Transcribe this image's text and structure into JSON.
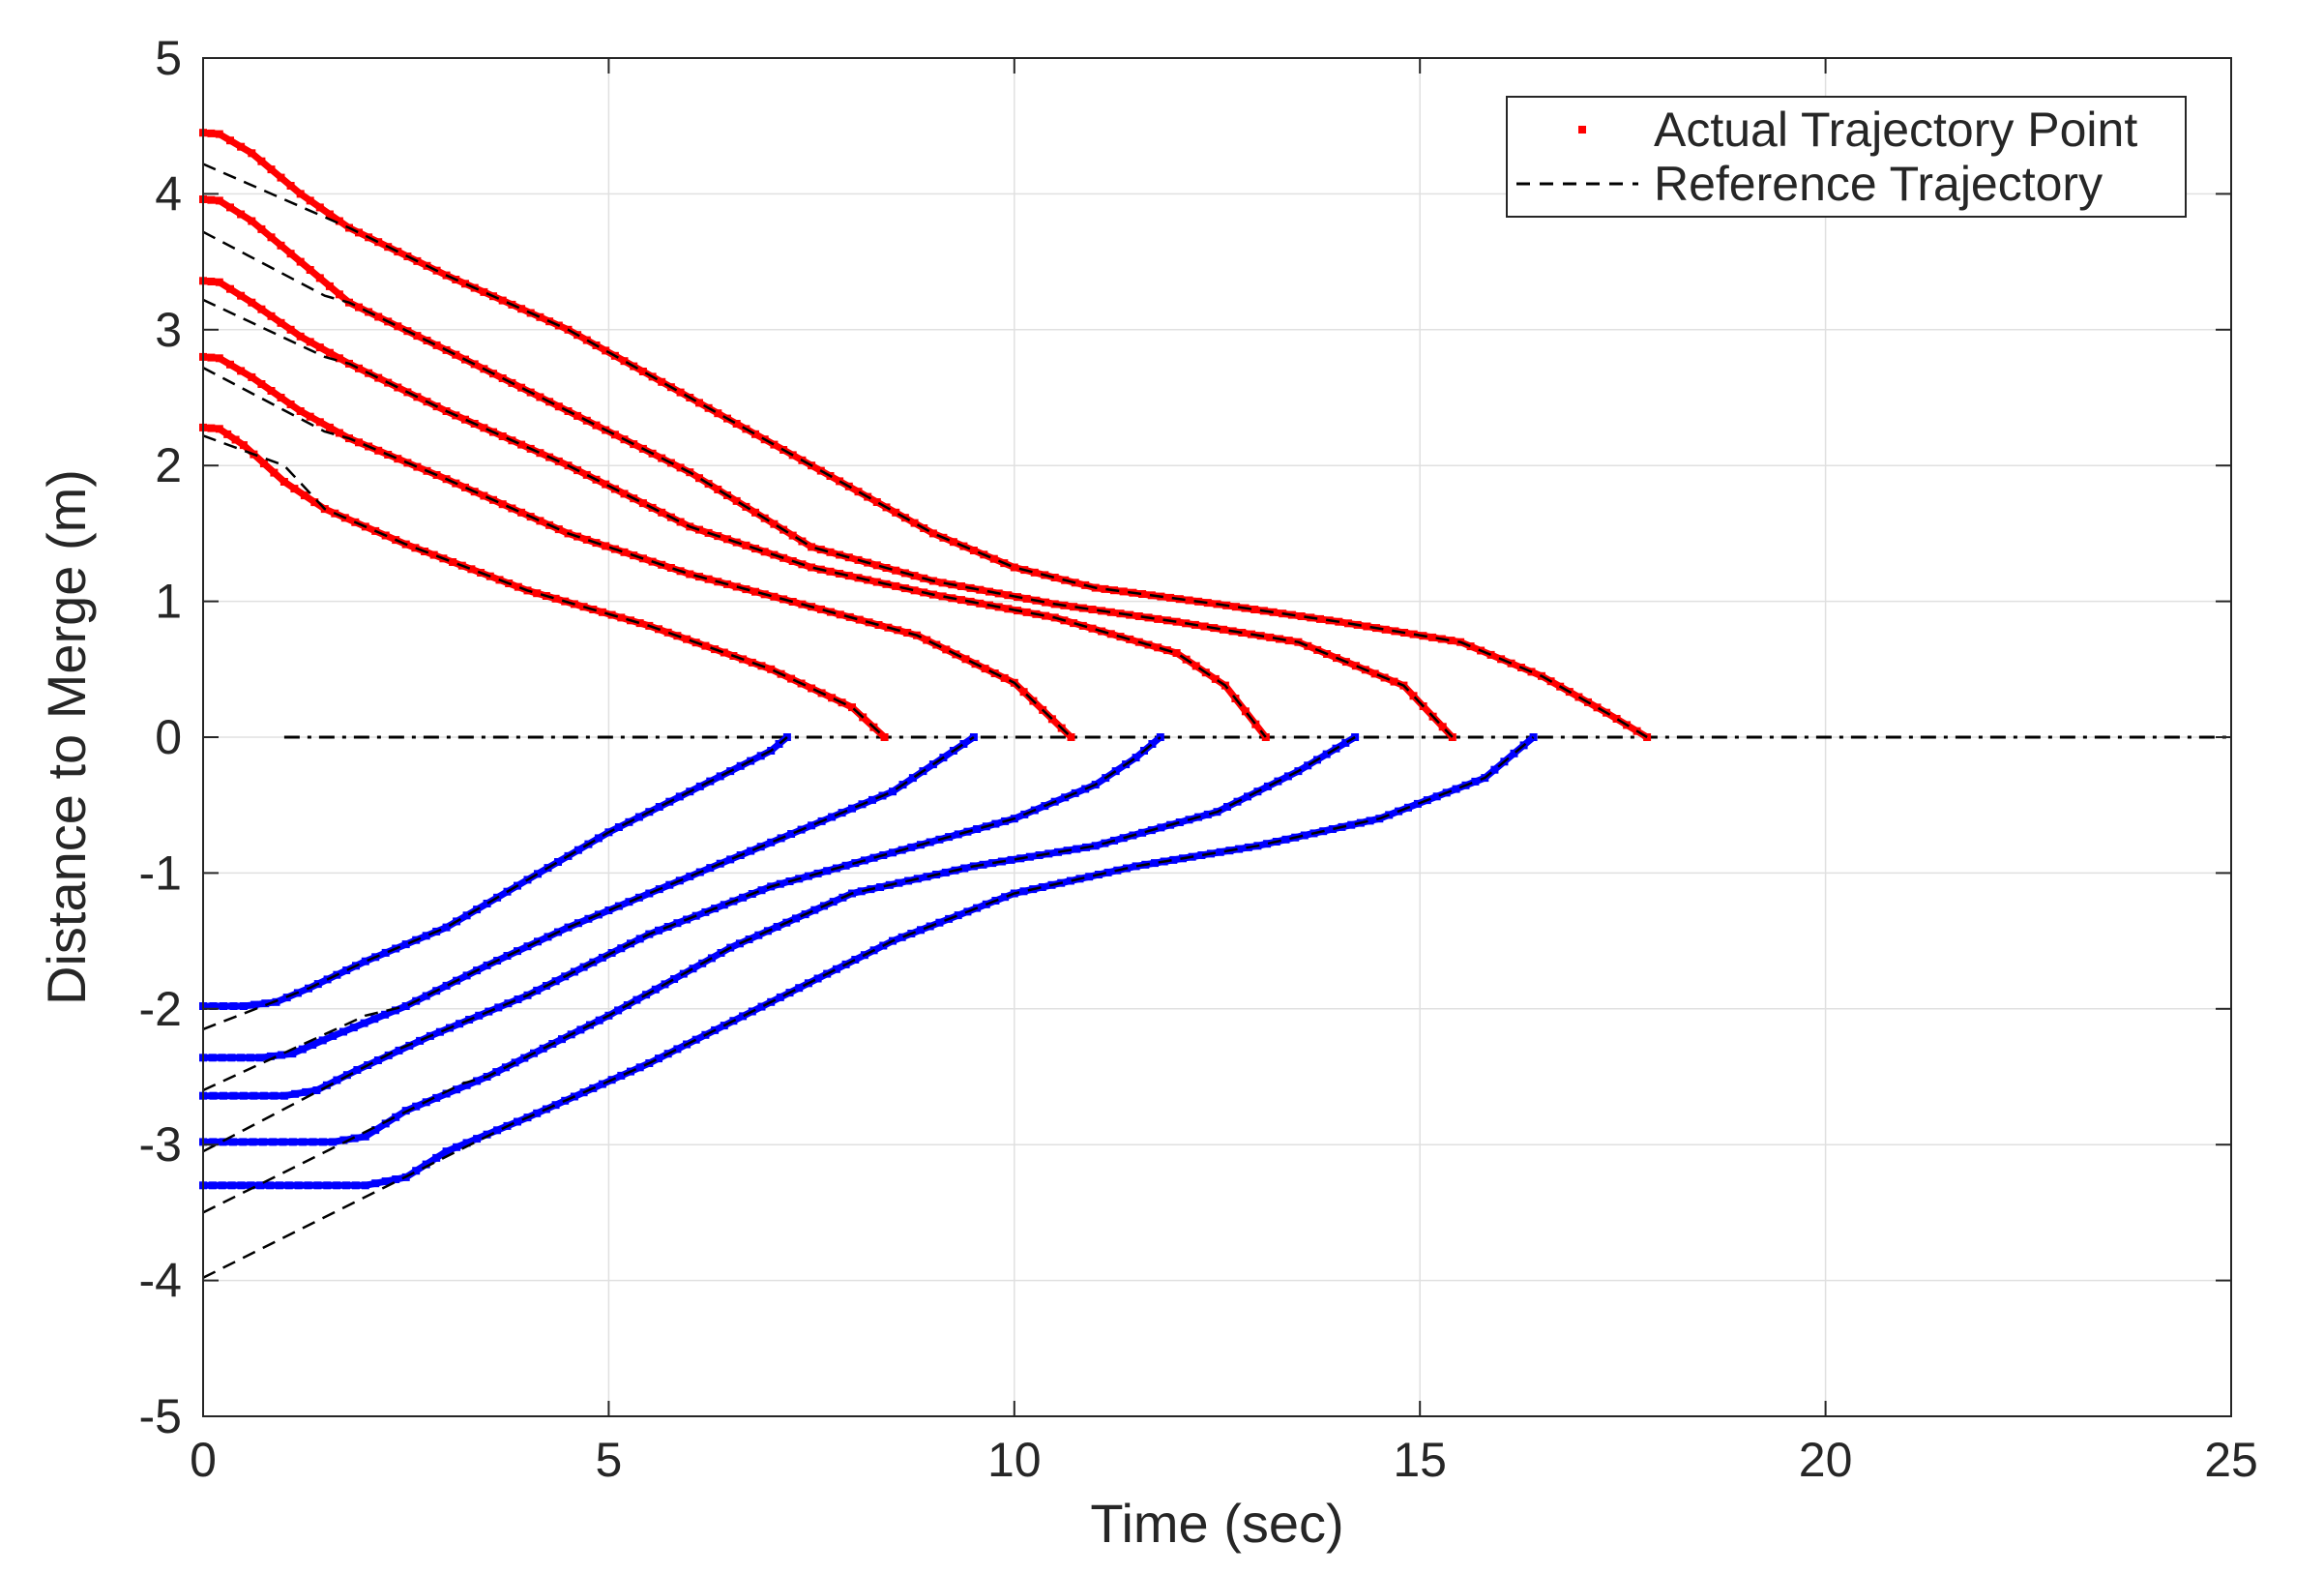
{
  "chart_data": {
    "type": "line",
    "xlabel": "Time (sec)",
    "ylabel": "Distance to Merge (m)",
    "xlim": [
      0,
      25
    ],
    "ylim": [
      -5,
      5
    ],
    "xticks": [
      0,
      5,
      10,
      15,
      20,
      25
    ],
    "yticks": [
      5,
      4,
      3,
      2,
      1,
      0,
      -1,
      -2,
      -3,
      -4,
      -5
    ],
    "grid": true,
    "legend_position": "top-right",
    "legend": [
      {
        "label": "Actual Trajectory Point",
        "marker": "point",
        "color": "#ff0000"
      },
      {
        "label": "Reference Trajectory",
        "line": "dashed",
        "color": "#000000"
      }
    ],
    "colors": {
      "upper_points": "#ff0000",
      "lower_points": "#0000ff",
      "reference": "#000000"
    },
    "merge_line": {
      "x": [
        1.0,
        25.0
      ],
      "y": 0
    },
    "actual_series": [
      {
        "group": "upper",
        "x": [
          0,
          0.2,
          0.5,
          1.0,
          1.5,
          2.5,
          4.0,
          5.5,
          7.0,
          8.0,
          8.4
        ],
        "y": [
          2.28,
          2.27,
          2.15,
          1.88,
          1.68,
          1.42,
          1.08,
          0.82,
          0.5,
          0.22,
          0.0
        ]
      },
      {
        "group": "upper",
        "x": [
          0,
          0.2,
          0.6,
          1.2,
          1.8,
          3.0,
          4.5,
          6.0,
          7.5,
          8.8,
          10.0,
          10.7
        ],
        "y": [
          2.8,
          2.79,
          2.65,
          2.4,
          2.2,
          1.9,
          1.5,
          1.2,
          0.96,
          0.75,
          0.4,
          0.0
        ]
      },
      {
        "group": "upper",
        "x": [
          0,
          0.2,
          0.6,
          1.2,
          1.8,
          3.0,
          4.5,
          6.0,
          7.5,
          9.0,
          10.5,
          12.0,
          12.6,
          13.1
        ],
        "y": [
          3.36,
          3.35,
          3.2,
          2.95,
          2.75,
          2.4,
          2.0,
          1.55,
          1.25,
          1.05,
          0.88,
          0.62,
          0.38,
          0.0
        ]
      },
      {
        "group": "upper",
        "x": [
          0,
          0.2,
          0.6,
          1.2,
          1.8,
          3.0,
          4.5,
          6.0,
          7.5,
          9.0,
          10.5,
          12.0,
          13.5,
          14.8,
          15.4
        ],
        "y": [
          3.96,
          3.95,
          3.8,
          3.5,
          3.2,
          2.85,
          2.4,
          1.95,
          1.4,
          1.15,
          0.98,
          0.85,
          0.7,
          0.38,
          0.0
        ]
      },
      {
        "group": "upper",
        "x": [
          0,
          0.2,
          0.6,
          1.2,
          1.8,
          3.0,
          4.5,
          6.0,
          7.5,
          9.0,
          10.0,
          11.0,
          12.5,
          14.0,
          15.5,
          16.5,
          17.3,
          17.8
        ],
        "y": [
          4.45,
          4.44,
          4.3,
          4.0,
          3.75,
          3.4,
          3.0,
          2.5,
          2.0,
          1.5,
          1.25,
          1.1,
          0.98,
          0.85,
          0.7,
          0.45,
          0.18,
          0.0
        ]
      },
      {
        "group": "lower",
        "x": [
          0,
          0.5,
          0.9,
          1.3,
          2.0,
          3.0,
          4.0,
          5.0,
          6.0,
          7.0,
          7.2
        ],
        "y": [
          -1.98,
          -1.98,
          -1.95,
          -1.85,
          -1.65,
          -1.4,
          -1.05,
          -0.7,
          -0.4,
          -0.1,
          0.0
        ]
      },
      {
        "group": "lower",
        "x": [
          0,
          0.7,
          1.1,
          1.6,
          2.5,
          3.5,
          4.5,
          5.5,
          6.5,
          7.5,
          8.5,
          9.0,
          9.5
        ],
        "y": [
          -2.36,
          -2.36,
          -2.33,
          -2.2,
          -1.98,
          -1.68,
          -1.4,
          -1.15,
          -0.9,
          -0.65,
          -0.4,
          -0.2,
          0.0
        ]
      },
      {
        "group": "lower",
        "x": [
          0,
          1.0,
          1.4,
          1.9,
          2.8,
          4.0,
          5.5,
          7.0,
          8.5,
          10.0,
          11.0,
          11.5,
          11.8
        ],
        "y": [
          -2.64,
          -2.64,
          -2.6,
          -2.45,
          -2.2,
          -1.9,
          -1.45,
          -1.1,
          -0.85,
          -0.6,
          -0.35,
          -0.15,
          0.0
        ]
      },
      {
        "group": "lower",
        "x": [
          0,
          1.6,
          2.0,
          2.5,
          3.5,
          5.0,
          6.5,
          8.0,
          9.5,
          11.0,
          12.5,
          13.5,
          14.2
        ],
        "y": [
          -2.98,
          -2.98,
          -2.94,
          -2.75,
          -2.5,
          -2.05,
          -1.55,
          -1.15,
          -0.95,
          -0.8,
          -0.55,
          -0.25,
          0.0
        ]
      },
      {
        "group": "lower",
        "x": [
          0,
          2.0,
          2.5,
          3.0,
          4.0,
          5.5,
          7.0,
          8.5,
          10.0,
          11.5,
          13.0,
          14.5,
          15.8,
          16.4
        ],
        "y": [
          -3.3,
          -3.3,
          -3.24,
          -3.05,
          -2.8,
          -2.4,
          -1.95,
          -1.5,
          -1.15,
          -0.95,
          -0.8,
          -0.6,
          -0.3,
          0.0
        ]
      }
    ],
    "reference_series": [
      {
        "x": [
          0,
          1.0,
          1.5,
          2.5,
          4.0,
          5.5,
          7.0,
          8.0,
          8.4
        ],
        "y": [
          2.22,
          2.0,
          1.68,
          1.42,
          1.08,
          0.82,
          0.5,
          0.22,
          0.0
        ]
      },
      {
        "x": [
          0,
          1.5,
          1.8,
          3.0,
          4.5,
          6.0,
          7.5,
          8.8,
          10.0,
          10.7
        ],
        "y": [
          2.72,
          2.25,
          2.2,
          1.9,
          1.5,
          1.2,
          0.96,
          0.75,
          0.4,
          0.0
        ]
      },
      {
        "x": [
          0,
          1.5,
          1.8,
          3.0,
          4.5,
          6.0,
          7.5,
          9.0,
          10.5,
          12.0,
          12.6,
          13.1
        ],
        "y": [
          3.22,
          2.8,
          2.75,
          2.4,
          2.0,
          1.55,
          1.25,
          1.05,
          0.88,
          0.62,
          0.38,
          0.0
        ]
      },
      {
        "x": [
          0,
          1.5,
          1.8,
          3.0,
          4.5,
          6.0,
          7.5,
          9.0,
          10.5,
          12.0,
          13.5,
          14.8,
          15.4
        ],
        "y": [
          3.72,
          3.25,
          3.2,
          2.85,
          2.4,
          1.95,
          1.4,
          1.15,
          0.98,
          0.85,
          0.7,
          0.38,
          0.0
        ]
      },
      {
        "x": [
          0,
          1.8,
          3.0,
          4.5,
          6.0,
          7.5,
          9.0,
          10.0,
          11.0,
          12.5,
          14.0,
          15.5,
          16.5,
          17.3,
          17.8
        ],
        "y": [
          4.22,
          3.75,
          3.4,
          3.0,
          2.5,
          2.0,
          1.5,
          1.25,
          1.1,
          0.98,
          0.85,
          0.7,
          0.45,
          0.18,
          0.0
        ]
      },
      {
        "x": [
          0,
          1.3,
          2.0,
          3.0,
          4.0,
          5.0,
          6.0,
          7.0,
          7.2
        ],
        "y": [
          -2.15,
          -1.85,
          -1.65,
          -1.4,
          -1.05,
          -0.7,
          -0.4,
          -0.1,
          0.0
        ]
      },
      {
        "x": [
          0,
          2.0,
          2.5,
          3.5,
          4.5,
          5.5,
          6.5,
          7.5,
          8.5,
          9.0,
          9.5
        ],
        "y": [
          -2.6,
          -2.05,
          -1.98,
          -1.68,
          -1.4,
          -1.15,
          -0.9,
          -0.65,
          -0.4,
          -0.2,
          0.0
        ]
      },
      {
        "x": [
          0,
          2.4,
          2.8,
          4.0,
          5.5,
          7.0,
          8.5,
          10.0,
          11.0,
          11.5,
          11.8
        ],
        "y": [
          -3.05,
          -2.3,
          -2.2,
          -1.9,
          -1.45,
          -1.1,
          -0.85,
          -0.6,
          -0.35,
          -0.15,
          0.0
        ]
      },
      {
        "x": [
          0,
          3.2,
          3.5,
          5.0,
          6.5,
          8.0,
          9.5,
          11.0,
          12.5,
          13.5,
          14.2
        ],
        "y": [
          -3.5,
          -2.55,
          -2.5,
          -2.05,
          -1.55,
          -1.15,
          -0.95,
          -0.8,
          -0.55,
          -0.25,
          0.0
        ]
      },
      {
        "x": [
          0,
          3.8,
          4.0,
          5.5,
          7.0,
          8.5,
          10.0,
          11.5,
          13.0,
          14.5,
          15.8,
          16.4
        ],
        "y": [
          -3.98,
          -2.85,
          -2.8,
          -2.4,
          -1.95,
          -1.5,
          -1.15,
          -0.95,
          -0.8,
          -0.6,
          -0.3,
          0.0
        ]
      }
    ]
  }
}
